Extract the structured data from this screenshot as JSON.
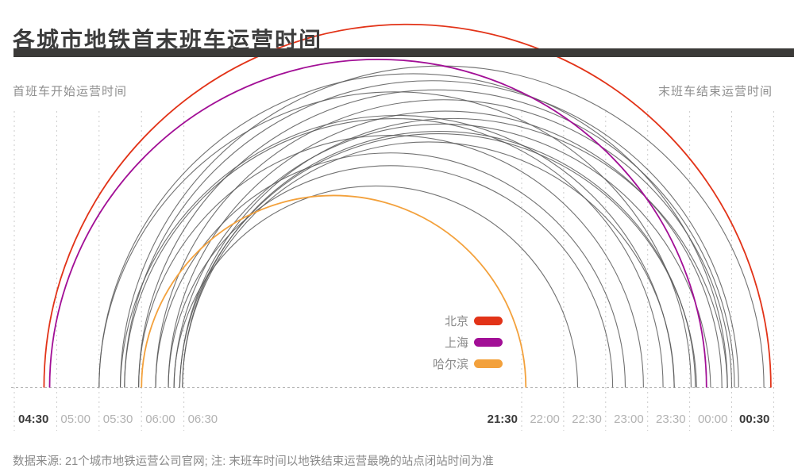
{
  "title": "各城市地铁首末班车运营时间",
  "axis_captions": {
    "left": "首班车开始运营时间",
    "right": "末班车结束运营时间"
  },
  "source_note": "数据来源: 21个城市地铁运营公司官网; 注: 末班车时间以地铁结束运营最晚的站点闭站时间为准",
  "colors": {
    "title_bar": "#3b3a38",
    "beijing": "#e23318",
    "shanghai": "#a20f96",
    "harbin": "#f3a13c",
    "gray_arc": "#585858",
    "gridline": "#cbcbcb",
    "baseline": "#b5b5b5",
    "tick_bold": "#3b3b3b",
    "tick_gray": "#b2b2b2"
  },
  "legend": [
    {
      "key": "beijing",
      "name": "北京",
      "color": "#e23318"
    },
    {
      "key": "shanghai",
      "name": "上海",
      "color": "#a20f96"
    },
    {
      "key": "harbin",
      "name": "哈尔滨",
      "color": "#f3a13c"
    }
  ],
  "chart_data": {
    "type": "arc",
    "description": "Each arc links a city's first-train start time (left axis segment) to its last-train end time (right axis segment); broken x-axis",
    "axis_break": true,
    "x_axis": {
      "left_range": [
        "04:30",
        "06:30"
      ],
      "right_range": [
        "21:30",
        "00:30"
      ],
      "left_ticks": [
        {
          "label": "04:30",
          "bold": true
        },
        {
          "label": "05:00",
          "bold": false
        },
        {
          "label": "05:30",
          "bold": false
        },
        {
          "label": "06:00",
          "bold": false
        },
        {
          "label": "06:30",
          "bold": false
        }
      ],
      "right_ticks": [
        {
          "label": "21:30",
          "bold": true
        },
        {
          "label": "22:00",
          "bold": false
        },
        {
          "label": "22:30",
          "bold": false
        },
        {
          "label": "23:00",
          "bold": false
        },
        {
          "label": "23:30",
          "bold": false
        },
        {
          "label": "00:00",
          "bold": false
        },
        {
          "label": "00:30",
          "bold": true
        }
      ]
    },
    "series": [
      {
        "city": "北京",
        "key": "beijing",
        "first_train": "04:51",
        "last_train": "00:28",
        "color": "#e23318",
        "highlight": true
      },
      {
        "city": "上海",
        "key": "shanghai",
        "first_train": "04:55",
        "last_train": "23:42",
        "color": "#a20f96",
        "highlight": true
      },
      {
        "city": "哈尔滨",
        "key": "harbin",
        "first_train": "06:00",
        "last_train": "21:33",
        "color": "#f3a13c",
        "highlight": true
      },
      {
        "city": "",
        "key": "",
        "first_train": "05:30",
        "last_train": "23:57",
        "color": "#585858",
        "highlight": false
      },
      {
        "city": "",
        "key": "",
        "first_train": "05:45",
        "last_train": "00:23",
        "color": "#585858",
        "highlight": false
      },
      {
        "city": "",
        "key": "",
        "first_train": "05:48",
        "last_train": "00:05",
        "color": "#585858",
        "highlight": false
      },
      {
        "city": "",
        "key": "",
        "first_train": "05:58",
        "last_train": "00:02",
        "color": "#585858",
        "highlight": false
      },
      {
        "city": "",
        "key": "",
        "first_train": "06:10",
        "last_train": "00:00",
        "color": "#585858",
        "highlight": false
      },
      {
        "city": "",
        "key": "",
        "first_train": "06:19",
        "last_train": "23:53",
        "color": "#585858",
        "highlight": false
      },
      {
        "city": "",
        "key": "",
        "first_train": "06:23",
        "last_train": "23:45",
        "color": "#585858",
        "highlight": false
      },
      {
        "city": "",
        "key": "",
        "first_train": "06:27",
        "last_train": "23:35",
        "color": "#585858",
        "highlight": false
      },
      {
        "city": "",
        "key": "",
        "first_train": "06:29",
        "last_train": "23:34",
        "color": "#585858",
        "highlight": false
      },
      {
        "city": "",
        "key": "",
        "first_train": "05:30",
        "last_train": "23:31",
        "color": "#585858",
        "highlight": false
      },
      {
        "city": "",
        "key": "",
        "first_train": "05:45",
        "last_train": "23:19",
        "color": "#585858",
        "highlight": false
      },
      {
        "city": "",
        "key": "",
        "first_train": "05:48",
        "last_train": "23:11",
        "color": "#585858",
        "highlight": false
      },
      {
        "city": "",
        "key": "",
        "first_train": "05:58",
        "last_train": "22:57",
        "color": "#585858",
        "highlight": false
      },
      {
        "city": "",
        "key": "",
        "first_train": "06:10",
        "last_train": "22:44",
        "color": "#585858",
        "highlight": false
      },
      {
        "city": "",
        "key": "",
        "first_train": "06:19",
        "last_train": "22:35",
        "color": "#585858",
        "highlight": false
      },
      {
        "city": "",
        "key": "",
        "first_train": "06:23",
        "last_train": "22:10",
        "color": "#585858",
        "highlight": false
      },
      {
        "city": "",
        "key": "",
        "first_train": "06:27",
        "last_train": "23:57",
        "color": "#585858",
        "highlight": false
      },
      {
        "city": "",
        "key": "",
        "first_train": "06:29",
        "last_train": "23:19",
        "color": "#585858",
        "highlight": false
      }
    ]
  }
}
